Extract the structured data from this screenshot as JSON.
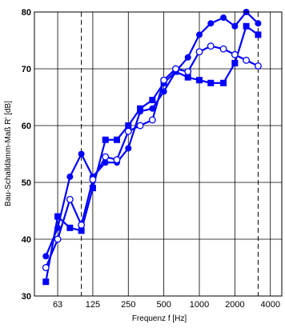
{
  "chart_data": {
    "type": "line",
    "xlabel": "Frequenz f [Hz]",
    "ylabel": "Bau-Schalldämm-Maß R' [dB]",
    "ylim": [
      30,
      80
    ],
    "yticks": [
      30,
      40,
      50,
      60,
      70,
      80
    ],
    "x_scale": "log",
    "xlim": [
      40,
      5000
    ],
    "x": [
      50,
      63,
      80,
      100,
      125,
      160,
      200,
      250,
      315,
      400,
      500,
      630,
      800,
      1000,
      1250,
      1600,
      2000,
      2500,
      3150
    ],
    "xtick_labels": [
      {
        "value": 63,
        "label": "63"
      },
      {
        "value": 125,
        "label": "125"
      },
      {
        "value": 250,
        "label": "250"
      },
      {
        "value": 500,
        "label": "500"
      },
      {
        "value": 1000,
        "label": "1000"
      },
      {
        "value": 2000,
        "label": "2000"
      },
      {
        "value": 4000,
        "label": "4000"
      }
    ],
    "vertical_gridlines": [
      63,
      125,
      250,
      500,
      1000,
      2000,
      4000
    ],
    "dashed_reference_lines": [
      100,
      3150
    ],
    "grid": true,
    "series": [
      {
        "marker": "filled-circle",
        "color": "#0000ff",
        "values": [
          37,
          42,
          51,
          55,
          51,
          53.5,
          53.5,
          56,
          62.5,
          63,
          66,
          69.5,
          72,
          76,
          78,
          79,
          77.5,
          80,
          78
        ]
      },
      {
        "marker": "filled-square",
        "color": "#0000ff",
        "values": [
          32.5,
          44,
          42,
          41.5,
          49,
          57.5,
          57.5,
          60,
          63,
          64.5,
          67.5,
          69.5,
          68.5,
          68,
          67.5,
          67.5,
          71,
          77.5,
          76
        ]
      },
      {
        "marker": "open-circle",
        "color": "#0000ff",
        "values": [
          35,
          40,
          47,
          42.5,
          50.5,
          54.5,
          54,
          59,
          60,
          61,
          68,
          70,
          69.5,
          73,
          74,
          73.5,
          72.5,
          71.5,
          70.5
        ]
      }
    ]
  }
}
